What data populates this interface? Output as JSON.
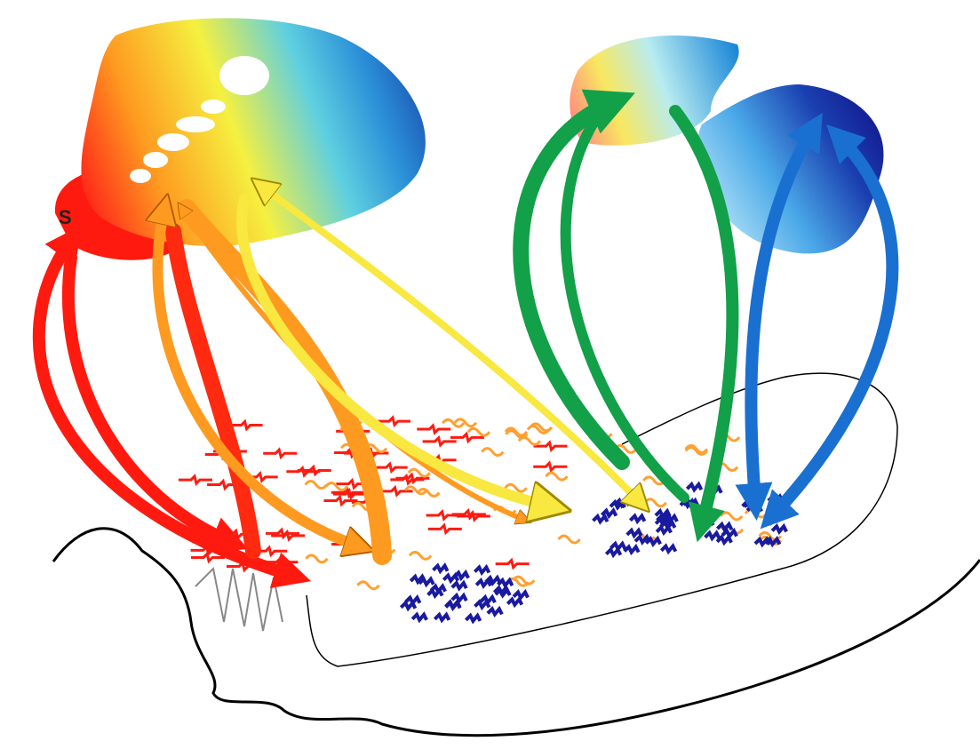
{
  "labels": {
    "s": "S"
  }
}
